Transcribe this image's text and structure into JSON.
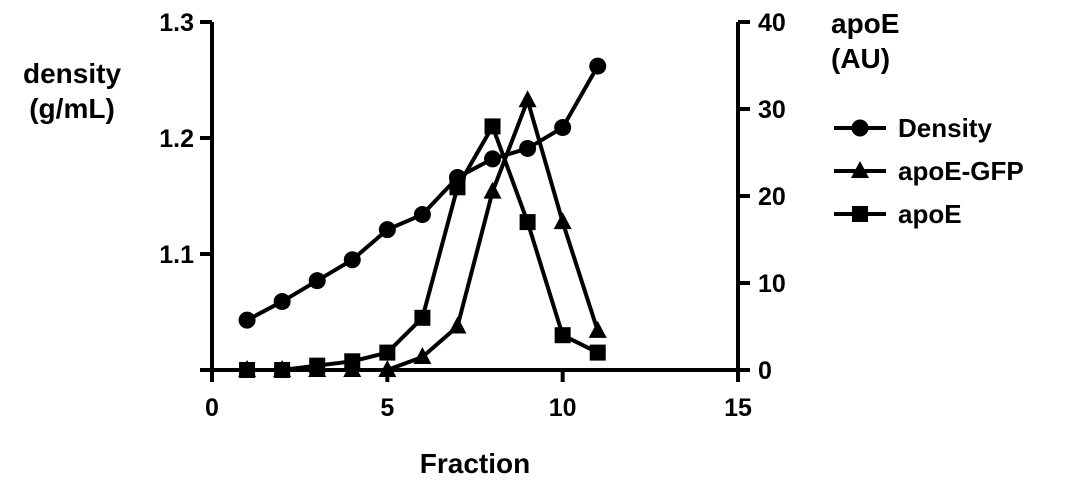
{
  "chart_data": {
    "type": "line",
    "xlabel": "Fraction",
    "ylabel_left": [
      "density",
      "(g/mL)"
    ],
    "ylabel_right": [
      "apoE",
      "(AU)"
    ],
    "xlim": [
      0,
      15
    ],
    "ylim_left": [
      1.0,
      1.3
    ],
    "ylim_right": [
      0,
      40
    ],
    "x_ticks": [
      "0",
      "5",
      "10",
      "15"
    ],
    "y_left_ticks": [
      "1.1",
      "1.2",
      "1.3"
    ],
    "y_right_ticks": [
      "0",
      "10",
      "20",
      "30",
      "40"
    ],
    "grid": false,
    "legend_position": "right",
    "series": [
      {
        "name": "Density",
        "axis": "left",
        "marker": "circle",
        "x": [
          1,
          2,
          3,
          4,
          5,
          6,
          7,
          8,
          9,
          10,
          11
        ],
        "values": [
          1.043,
          1.059,
          1.077,
          1.095,
          1.121,
          1.134,
          1.166,
          1.182,
          1.191,
          1.209,
          1.262
        ]
      },
      {
        "name": "apoE-GFP",
        "axis": "right",
        "marker": "triangle",
        "x": [
          1,
          2,
          3,
          4,
          5,
          6,
          7,
          8,
          9,
          10,
          11
        ],
        "values": [
          0,
          0,
          0,
          0,
          0,
          1.5,
          5,
          20.5,
          31,
          17,
          4.5
        ]
      },
      {
        "name": "apoE",
        "axis": "right",
        "marker": "square",
        "x": [
          1,
          2,
          3,
          4,
          5,
          6,
          7,
          8,
          9,
          10,
          11
        ],
        "values": [
          0,
          0,
          0.5,
          1,
          2,
          6,
          21,
          28,
          17,
          4,
          2
        ]
      }
    ]
  }
}
